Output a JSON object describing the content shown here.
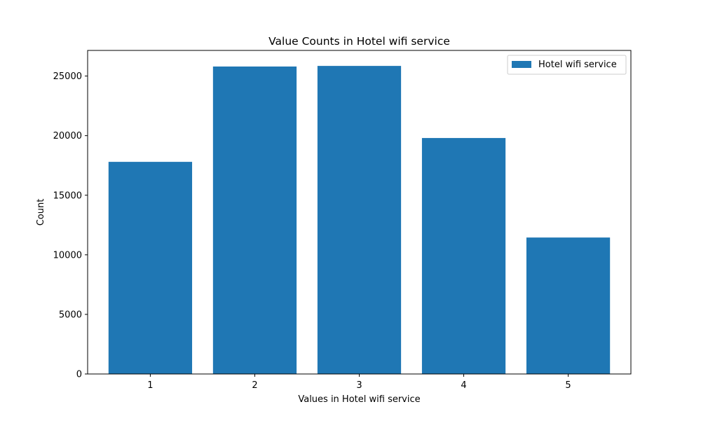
{
  "chart_data": {
    "type": "bar",
    "title": "Value Counts in Hotel wifi service",
    "xlabel": "Values in Hotel wifi service",
    "ylabel": "Count",
    "categories": [
      "1",
      "2",
      "3",
      "4",
      "5"
    ],
    "series": [
      {
        "name": "Hotel wifi service",
        "values": [
          17800,
          25800,
          25850,
          19800,
          11450
        ]
      }
    ],
    "ylim": [
      0,
      27150
    ],
    "yticks": [
      0,
      5000,
      10000,
      15000,
      20000,
      25000
    ],
    "grid": false,
    "legend_position": "top-right",
    "colors": {
      "bar": "#1f77b4",
      "axis": "#000000",
      "legend_border": "#cccccc"
    }
  }
}
